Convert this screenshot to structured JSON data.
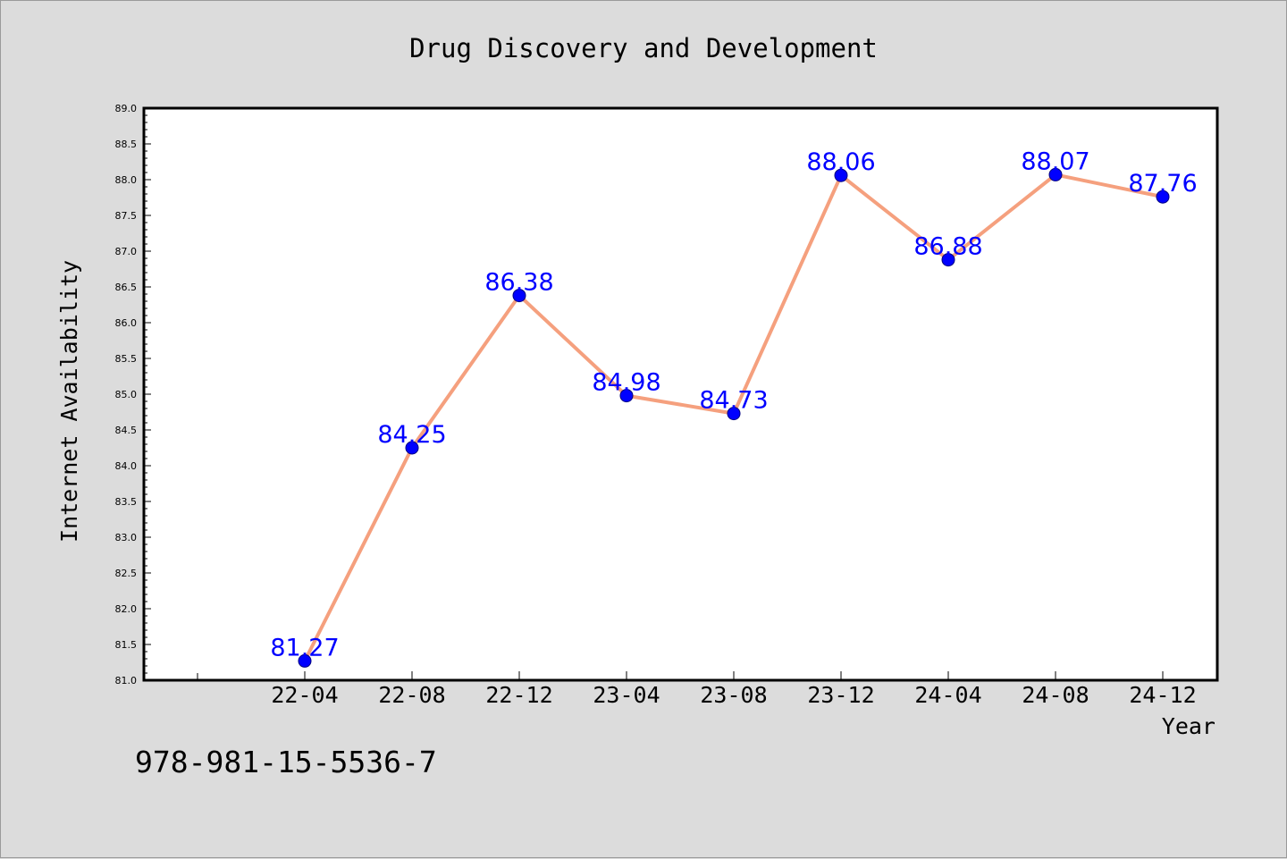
{
  "colors": {
    "background": "#dcdcdc",
    "plot_background": "#ffffff",
    "line": "#f5a07e",
    "marker": "#0000ff",
    "label": "#0000ff"
  },
  "footer": {
    "isbn": "978-981-15-5536-7"
  },
  "chart_data": {
    "type": "line",
    "title": "Drug Discovery and Development",
    "xlabel": "Year",
    "ylabel": "Internet Availability",
    "categories": [
      "22-04",
      "22-08",
      "22-12",
      "23-04",
      "23-08",
      "23-12",
      "24-04",
      "24-08",
      "24-12"
    ],
    "series": [
      {
        "values": [
          81.27,
          84.25,
          86.38,
          84.98,
          84.73,
          88.06,
          86.88,
          88.07,
          87.76
        ],
        "labels": [
          "81.27",
          "84.25",
          "86.38",
          "84.98",
          "84.73",
          "88.06",
          "86.88",
          "88.07",
          "87.76"
        ]
      }
    ],
    "ylim": [
      81.0,
      89.0
    ],
    "yticks": [
      81.0,
      81.5,
      82.0,
      82.5,
      83.0,
      83.5,
      84.0,
      84.5,
      85.0,
      85.5,
      86.0,
      86.5,
      87.0,
      87.5,
      88.0,
      88.5,
      89.0
    ],
    "ytick_labels": [
      "81.0",
      "81.5",
      "82.0",
      "82.5",
      "83.0",
      "83.5",
      "84.0",
      "84.5",
      "85.0",
      "85.5",
      "86.0",
      "86.5",
      "87.0",
      "87.5",
      "88.0",
      "88.5",
      "89.0"
    ],
    "grid": false,
    "legend": "none"
  }
}
